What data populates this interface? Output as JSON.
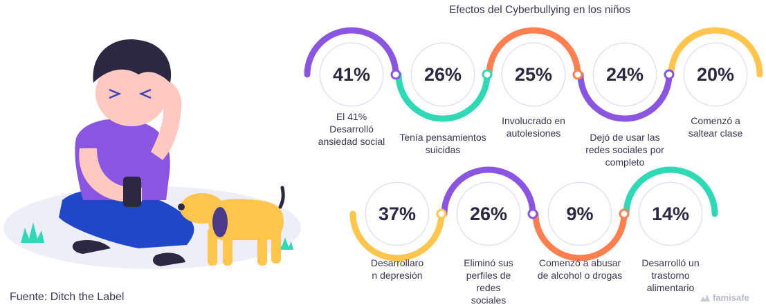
{
  "title": "Efectos del Cyberbullying en los niños",
  "source": "Fuente: Ditch the Label",
  "logo": "famisafe",
  "colors": {
    "purple": "#8a55e0",
    "teal": "#2fd9b5",
    "orange": "#ff7f50",
    "yellow": "#ffc54d"
  },
  "row1": [
    {
      "value": "41%",
      "label": "El 41%\nDesarrolló\nansiedad social",
      "color": "purple"
    },
    {
      "value": "26%",
      "label": "Tenía pensamientos\nsuicidas",
      "color": "teal"
    },
    {
      "value": "25%",
      "label": "Involucrado en\nautolesiones",
      "color": "orange"
    },
    {
      "value": "24%",
      "label": "Dejó de usar las\nredes sociales por\ncompleto",
      "color": "purple"
    },
    {
      "value": "20%",
      "label": "Comenzó a\nsaltear clase",
      "color": "yellow"
    }
  ],
  "row2": [
    {
      "value": "37%",
      "label": "Desarrollaro\nn depresión",
      "color": "yellow"
    },
    {
      "value": "26%",
      "label": "Eliminó sus\nperfiles de\nredes\nsociales",
      "color": "purple"
    },
    {
      "value": "9%",
      "label": "Comenzó a abusar\nde alcohol o drogas",
      "color": "orange"
    },
    {
      "value": "14%",
      "label": "Desarrolló un\ntrastorno\nalimentario",
      "color": "teal"
    }
  ]
}
